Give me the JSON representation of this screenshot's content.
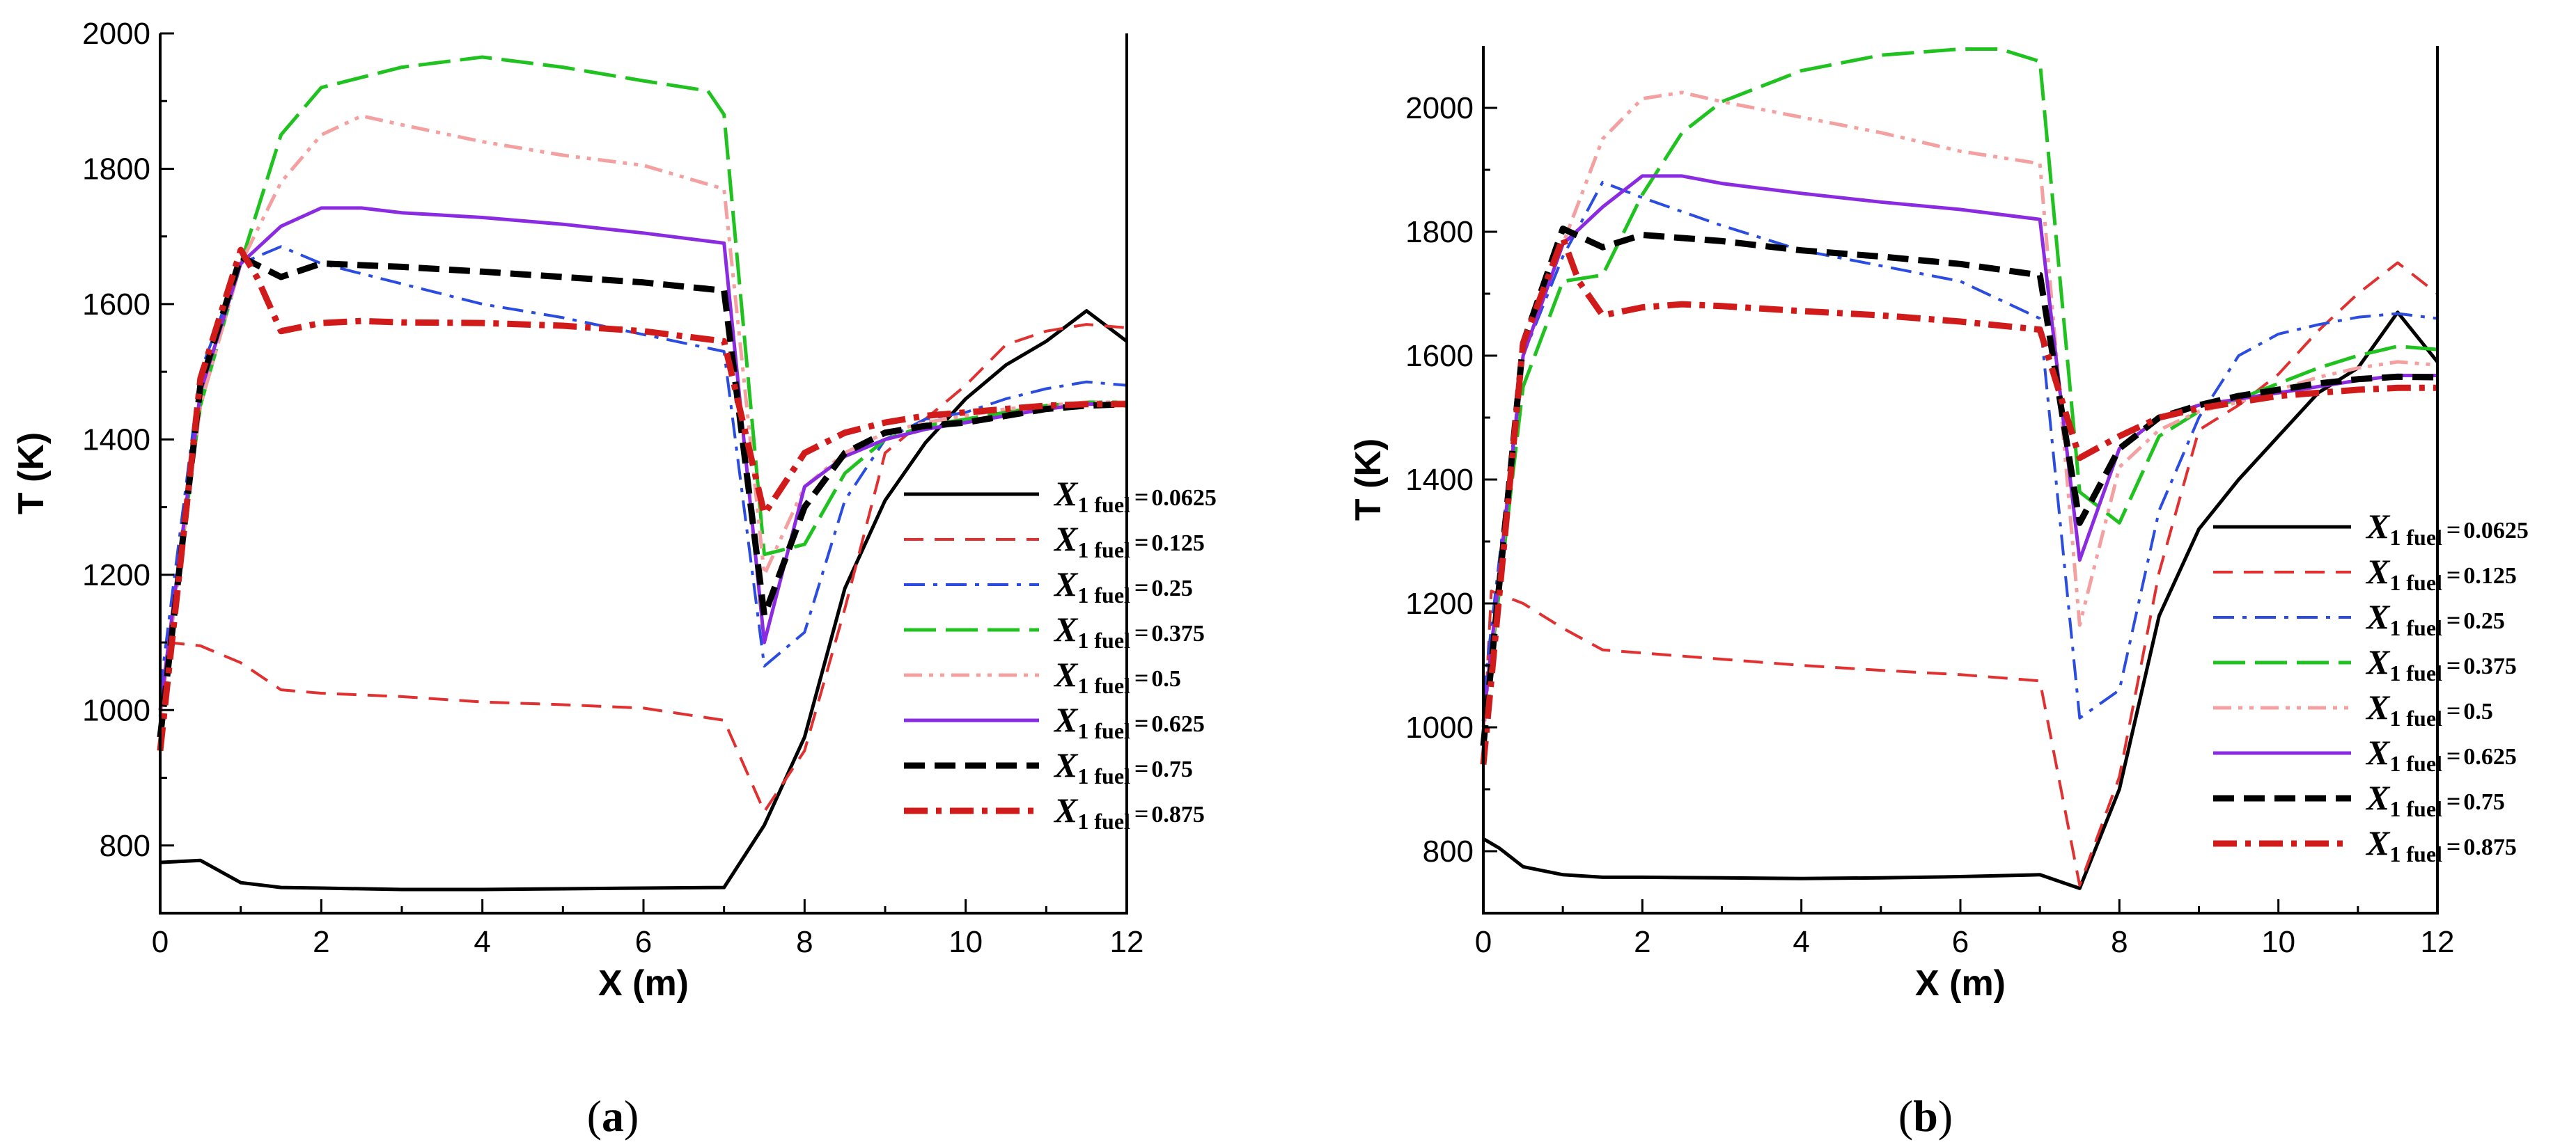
{
  "chart_data": [
    {
      "id": "a",
      "type": "line",
      "caption_letter": "a",
      "caption_open": "(",
      "caption_close": ")",
      "xlabel": "X (m)",
      "ylabel": "T (K)",
      "xlim": [
        0,
        12
      ],
      "ylim": [
        700,
        2000
      ],
      "xticks": [
        0,
        2,
        4,
        6,
        8,
        10,
        12
      ],
      "yticks": [
        800,
        1000,
        1200,
        1400,
        1600,
        1800,
        2000
      ],
      "legend_position": "right-center",
      "series": [
        {
          "name": "X1fuel=0.0625",
          "symbol": "X",
          "sub": "1 fuel",
          "eq": "=",
          "value": "0.0625",
          "color": "#000000",
          "style": "solid",
          "width": 5,
          "x": [
            0,
            0.5,
            1,
            1.5,
            2,
            3,
            4,
            5,
            6,
            7,
            7.5,
            8,
            8.5,
            9,
            9.5,
            10,
            10.5,
            11,
            11.5,
            12
          ],
          "y": [
            775,
            778,
            745,
            738,
            737,
            735,
            735,
            736,
            737,
            738,
            830,
            960,
            1180,
            1310,
            1395,
            1460,
            1510,
            1545,
            1590,
            1545
          ]
        },
        {
          "name": "X1fuel=0.125",
          "symbol": "X",
          "sub": "1 fuel",
          "eq": "=",
          "value": "0.125",
          "color": "#e03030",
          "style": "dash",
          "width": 4,
          "x": [
            0,
            0.1,
            0.5,
            1,
            1.5,
            2,
            3,
            4,
            5,
            6,
            7,
            7.5,
            8,
            8.5,
            9,
            9.5,
            10,
            10.5,
            11,
            11.5,
            12
          ],
          "y": [
            960,
            1100,
            1095,
            1070,
            1030,
            1025,
            1020,
            1012,
            1008,
            1003,
            985,
            850,
            940,
            1150,
            1380,
            1430,
            1480,
            1540,
            1560,
            1570,
            1565
          ]
        },
        {
          "name": "X1fuel=0.25",
          "symbol": "X",
          "sub": "1 fuel",
          "eq": "=",
          "value": "0.25",
          "color": "#2a4ce0",
          "style": "dashdot",
          "width": 4,
          "x": [
            0,
            0.5,
            1,
            1.5,
            2,
            3,
            4,
            5,
            6,
            7,
            7.5,
            8,
            8.5,
            9,
            9.5,
            10,
            10.5,
            11,
            11.5,
            12
          ],
          "y": [
            1030,
            1500,
            1660,
            1685,
            1660,
            1630,
            1600,
            1580,
            1555,
            1530,
            1065,
            1115,
            1310,
            1400,
            1430,
            1440,
            1460,
            1475,
            1485,
            1480
          ]
        },
        {
          "name": "X1fuel=0.375",
          "symbol": "X",
          "sub": "1 fuel",
          "eq": "=",
          "value": "0.375",
          "color": "#1fc21f",
          "style": "longdash",
          "width": 5,
          "x": [
            0,
            0.5,
            1,
            1.5,
            2,
            3,
            4,
            5,
            6,
            6.8,
            7,
            7.5,
            8,
            8.5,
            9,
            9.5,
            10,
            10.5,
            11,
            11.5,
            12
          ],
          "y": [
            1000,
            1450,
            1660,
            1850,
            1920,
            1950,
            1965,
            1950,
            1930,
            1915,
            1880,
            1230,
            1245,
            1350,
            1400,
            1420,
            1430,
            1440,
            1450,
            1455,
            1455
          ]
        },
        {
          "name": "X1fuel=0.5",
          "symbol": "X",
          "sub": "1 fuel",
          "eq": "=",
          "value": "0.5",
          "color": "#f5a0a0",
          "style": "dashdotdot",
          "width": 5,
          "x": [
            0,
            0.5,
            1,
            1.5,
            2,
            2.5,
            3,
            4,
            5,
            6,
            7,
            7.5,
            8,
            8.5,
            9,
            9.5,
            10,
            10.5,
            11,
            11.5,
            12
          ],
          "y": [
            990,
            1450,
            1660,
            1780,
            1850,
            1878,
            1865,
            1840,
            1820,
            1805,
            1770,
            1200,
            1330,
            1380,
            1410,
            1425,
            1435,
            1445,
            1450,
            1455,
            1455
          ]
        },
        {
          "name": "X1fuel=0.625",
          "symbol": "X",
          "sub": "1 fuel",
          "eq": "=",
          "value": "0.625",
          "color": "#8a2be2",
          "style": "solid",
          "width": 5,
          "x": [
            0,
            0.5,
            1,
            1.5,
            2,
            2.5,
            3,
            4,
            5,
            6,
            7,
            7.5,
            8,
            8.5,
            9,
            9.5,
            10,
            10.5,
            11,
            11.5,
            12
          ],
          "y": [
            1000,
            1470,
            1660,
            1715,
            1742,
            1742,
            1735,
            1728,
            1718,
            1705,
            1690,
            1100,
            1330,
            1375,
            1400,
            1415,
            1425,
            1435,
            1445,
            1452,
            1453
          ]
        },
        {
          "name": "X1fuel=0.75",
          "symbol": "X",
          "sub": "1 fuel",
          "eq": "=",
          "value": "0.75",
          "color": "#000000",
          "style": "boldDash",
          "width": 9,
          "x": [
            0,
            0.5,
            1,
            1.5,
            2,
            3,
            4,
            5,
            6,
            7,
            7.5,
            8,
            8.5,
            9,
            9.5,
            10,
            10.5,
            11,
            11.5,
            12
          ],
          "y": [
            960,
            1480,
            1670,
            1640,
            1660,
            1655,
            1648,
            1640,
            1632,
            1620,
            1140,
            1300,
            1380,
            1410,
            1420,
            1425,
            1435,
            1445,
            1450,
            1452
          ]
        },
        {
          "name": "X1fuel=0.875",
          "symbol": "X",
          "sub": "1 fuel",
          "eq": "=",
          "value": "0.875",
          "color": "#d11a1a",
          "style": "boldDashDot",
          "width": 9,
          "x": [
            0,
            0.5,
            1,
            1.2,
            1.5,
            2,
            2.5,
            3,
            4,
            5,
            6,
            7,
            7.5,
            8,
            8.5,
            9,
            9.5,
            10,
            10.5,
            11,
            11.5,
            12
          ],
          "y": [
            940,
            1490,
            1680,
            1640,
            1560,
            1572,
            1575,
            1573,
            1572,
            1568,
            1560,
            1545,
            1290,
            1380,
            1410,
            1425,
            1435,
            1440,
            1445,
            1450,
            1452,
            1452
          ]
        }
      ]
    },
    {
      "id": "b",
      "type": "line",
      "caption_letter": "b",
      "caption_open": "(",
      "caption_close": ")",
      "xlabel": "X (m)",
      "ylabel": "T (K)",
      "xlim": [
        0,
        12
      ],
      "ylim": [
        700,
        2100
      ],
      "xticks": [
        0,
        2,
        4,
        6,
        8,
        10,
        12
      ],
      "yticks": [
        800,
        1000,
        1200,
        1400,
        1600,
        1800,
        2000
      ],
      "legend_position": "right-center",
      "series": [
        {
          "name": "X1fuel=0.0625",
          "symbol": "X",
          "sub": "1 fuel",
          "eq": "=",
          "value": "0.0625",
          "color": "#000000",
          "style": "solid",
          "width": 5,
          "x": [
            0,
            0.2,
            0.5,
            1,
            1.5,
            2,
            3,
            4,
            5,
            6,
            7,
            7.5,
            8,
            8.5,
            9,
            9.5,
            10,
            10.5,
            11,
            11.5,
            12
          ],
          "y": [
            820,
            805,
            775,
            762,
            758,
            758,
            757,
            756,
            757,
            759,
            762,
            740,
            900,
            1180,
            1320,
            1400,
            1470,
            1540,
            1580,
            1670,
            1590
          ]
        },
        {
          "name": "X1fuel=0.125",
          "symbol": "X",
          "sub": "1 fuel",
          "eq": "=",
          "value": "0.125",
          "color": "#e03030",
          "style": "dash",
          "width": 4,
          "x": [
            0,
            0.1,
            0.5,
            1,
            1.5,
            2,
            3,
            4,
            5,
            6,
            7,
            7.5,
            8,
            8.5,
            9,
            9.5,
            10,
            10.5,
            11,
            11.5,
            12
          ],
          "y": [
            960,
            1220,
            1200,
            1160,
            1125,
            1120,
            1110,
            1100,
            1092,
            1085,
            1075,
            745,
            920,
            1250,
            1480,
            1520,
            1570,
            1640,
            1700,
            1750,
            1700
          ]
        },
        {
          "name": "X1fuel=0.25",
          "symbol": "X",
          "sub": "1 fuel",
          "eq": "=",
          "value": "0.25",
          "color": "#2a4ce0",
          "style": "dashdot",
          "width": 4,
          "x": [
            0,
            0.5,
            1,
            1.5,
            2,
            3,
            4,
            5,
            6,
            7,
            7.5,
            8,
            8.5,
            9,
            9.5,
            10,
            10.5,
            11,
            11.5,
            12
          ],
          "y": [
            1050,
            1600,
            1760,
            1880,
            1855,
            1810,
            1770,
            1745,
            1720,
            1660,
            1015,
            1060,
            1350,
            1500,
            1600,
            1635,
            1650,
            1662,
            1668,
            1660
          ]
        },
        {
          "name": "X1fuel=0.375",
          "symbol": "X",
          "sub": "1 fuel",
          "eq": "=",
          "value": "0.375",
          "color": "#1fc21f",
          "style": "longdash",
          "width": 5,
          "x": [
            0,
            0.5,
            1,
            1.5,
            2,
            2.5,
            3,
            4,
            5,
            6,
            6.5,
            7,
            7.5,
            8,
            8.5,
            9,
            9.5,
            10,
            10.5,
            11,
            11.5,
            12
          ],
          "y": [
            1000,
            1550,
            1720,
            1730,
            1860,
            1960,
            2010,
            2060,
            2085,
            2095,
            2095,
            2075,
            1380,
            1330,
            1470,
            1510,
            1530,
            1555,
            1580,
            1600,
            1615,
            1610
          ]
        },
        {
          "name": "X1fuel=0.5",
          "symbol": "X",
          "sub": "1 fuel",
          "eq": "=",
          "value": "0.5",
          "color": "#f5a0a0",
          "style": "dashdotdot",
          "width": 5,
          "x": [
            0,
            0.5,
            1,
            1.5,
            2,
            2.5,
            3,
            4,
            5,
            6,
            7,
            7.5,
            8,
            8.5,
            9,
            9.5,
            10,
            10.5,
            11,
            11.5,
            12
          ],
          "y": [
            1000,
            1600,
            1780,
            1950,
            2015,
            2025,
            2010,
            1985,
            1960,
            1930,
            1910,
            1165,
            1420,
            1480,
            1510,
            1525,
            1545,
            1565,
            1580,
            1590,
            1585
          ]
        },
        {
          "name": "X1fuel=0.625",
          "symbol": "X",
          "sub": "1 fuel",
          "eq": "=",
          "value": "0.625",
          "color": "#8a2be2",
          "style": "solid",
          "width": 5,
          "x": [
            0,
            0.5,
            1,
            1.5,
            2,
            2.5,
            3,
            4,
            5,
            6,
            7,
            7.5,
            8,
            8.5,
            9,
            9.5,
            10,
            10.5,
            11,
            11.5,
            12
          ],
          "y": [
            1010,
            1600,
            1780,
            1840,
            1890,
            1890,
            1878,
            1862,
            1848,
            1836,
            1820,
            1270,
            1450,
            1500,
            1520,
            1530,
            1540,
            1550,
            1560,
            1568,
            1568
          ]
        },
        {
          "name": "X1fuel=0.75",
          "symbol": "X",
          "sub": "1 fuel",
          "eq": "=",
          "value": "0.75",
          "color": "#000000",
          "style": "boldDash",
          "width": 9,
          "x": [
            0,
            0.5,
            1,
            1.5,
            2,
            3,
            4,
            5,
            6,
            7,
            7.5,
            8,
            8.5,
            9,
            9.5,
            10,
            10.5,
            11,
            11.5,
            12
          ],
          "y": [
            970,
            1620,
            1805,
            1775,
            1795,
            1785,
            1770,
            1760,
            1748,
            1730,
            1330,
            1450,
            1500,
            1520,
            1535,
            1545,
            1555,
            1562,
            1566,
            1565
          ]
        },
        {
          "name": "X1fuel=0.875",
          "symbol": "X",
          "sub": "1 fuel",
          "eq": "=",
          "value": "0.875",
          "color": "#d11a1a",
          "style": "boldDashDot",
          "width": 9,
          "x": [
            0,
            0.5,
            1,
            1.2,
            1.5,
            2,
            2.5,
            3,
            4,
            5,
            6,
            7,
            7.5,
            8,
            8.5,
            9,
            9.5,
            10,
            10.5,
            11,
            11.5,
            12
          ],
          "y": [
            940,
            1620,
            1790,
            1720,
            1665,
            1678,
            1683,
            1680,
            1672,
            1665,
            1655,
            1642,
            1435,
            1470,
            1500,
            1515,
            1525,
            1535,
            1540,
            1545,
            1548,
            1548
          ]
        }
      ]
    }
  ]
}
